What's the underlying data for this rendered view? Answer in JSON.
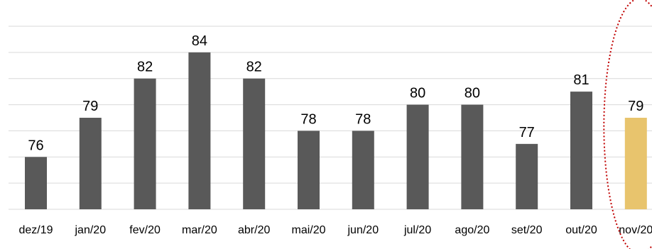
{
  "chart_data": {
    "type": "bar",
    "categories": [
      "dez/19",
      "jan/20",
      "fev/20",
      "mar/20",
      "abr/20",
      "mai/20",
      "jun/20",
      "jul/20",
      "ago/20",
      "set/20",
      "out/20",
      "nov/20"
    ],
    "values": [
      76,
      79,
      82,
      84,
      82,
      78,
      78,
      80,
      80,
      77,
      81,
      79
    ],
    "title": "",
    "xlabel": "",
    "ylabel": "",
    "ylim": [
      72,
      86
    ],
    "grid": true,
    "legend": "none",
    "bar_color": "#595959",
    "highlight_color": "#E8C46D",
    "highlight_index": 11,
    "highlight_outline_color": "#C00000"
  }
}
